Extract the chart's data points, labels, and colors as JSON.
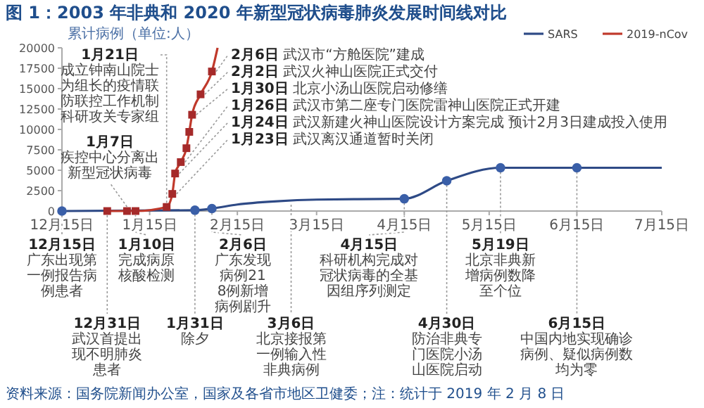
{
  "chart_data": {
    "type": "line",
    "title": "图 1：2003 年非典和 2020 年新型冠状病毒肺炎发展时间线对比",
    "ylabel": "累计病例（单位:人）",
    "xlim": [
      "2002-12-15",
      "2003-07-15"
    ],
    "xticks": [
      {
        "value": "2002-12-15",
        "label": "12月15日"
      },
      {
        "value": "2003-01-15",
        "label": "1月15日"
      },
      {
        "value": "2003-02-15",
        "label": "2月15日"
      },
      {
        "value": "2003-03-15",
        "label": "3月15日"
      },
      {
        "value": "2003-04-15",
        "label": "4月15日"
      },
      {
        "value": "2003-05-15",
        "label": "5月15日"
      },
      {
        "value": "2003-06-15",
        "label": "6月15日"
      },
      {
        "value": "2003-07-15",
        "label": "7月15日"
      }
    ],
    "ylim": [
      0,
      20000
    ],
    "yticks": [
      0,
      2500,
      5000,
      7500,
      10000,
      12500,
      15000,
      17500,
      20000
    ],
    "legend": "top right",
    "series": [
      {
        "name": "SARS",
        "color": "#2e4a86",
        "marker": "none",
        "x": [
          "2002-12-15",
          "2003-01-31",
          "2003-02-06",
          "2003-02-15",
          "2003-03-01",
          "2003-03-15",
          "2003-04-15",
          "2003-04-30",
          "2003-05-19",
          "2003-06-15",
          "2003-07-15"
        ],
        "values": [
          0,
          100,
          300,
          800,
          1200,
          1400,
          1500,
          3700,
          5300,
          5300,
          5300
        ]
      },
      {
        "name": "2019-nCov",
        "color": "#c0392b",
        "marker": "none",
        "x": [
          "2002-12-31",
          "2003-01-07",
          "2003-01-10",
          "2003-01-21",
          "2003-01-23",
          "2003-01-24",
          "2003-01-26",
          "2003-01-28",
          "2003-01-29",
          "2003-01-30",
          "2003-02-02",
          "2003-02-06",
          "2003-02-08"
        ],
        "values": [
          0,
          0,
          0,
          500,
          2100,
          4600,
          6000,
          7700,
          9700,
          11800,
          14300,
          17100,
          20000
        ]
      },
      {
        "type": "scatter",
        "color": "#3a5fa8",
        "marker": "circle",
        "x": [
          "2002-12-15",
          "2003-01-31",
          "2003-02-06",
          "2003-04-15",
          "2003-04-30",
          "2003-05-19",
          "2003-06-15"
        ],
        "values": [
          0,
          100,
          300,
          1500,
          3700,
          5300,
          5300
        ]
      },
      {
        "type": "scatter",
        "color": "#a52a2a",
        "marker": "square",
        "x": [
          "2002-12-31",
          "2003-01-07",
          "2003-01-10",
          "2003-01-21",
          "2003-01-23",
          "2003-01-24",
          "2003-01-26",
          "2003-01-28",
          "2003-01-29",
          "2003-01-30",
          "2003-02-02",
          "2003-02-06"
        ],
        "values": [
          0,
          0,
          0,
          500,
          2100,
          4600,
          6000,
          7700,
          9700,
          11800,
          14300,
          17100
        ]
      }
    ],
    "annotations": [
      {
        "text": "2月6日 武汉市“方舱医院”建成",
        "x": "2003-02-06",
        "y": 17100
      },
      {
        "text": "2月2日 武汉火神山医院正式交付",
        "x": "2003-02-02",
        "y": 14300
      },
      {
        "text": "1月30日 北京小汤山医院启动修缮",
        "x": "2003-01-30",
        "y": 11800
      },
      {
        "text": "1月26日 武汉市第二座专门医院雷神山医院正式开建",
        "x": "2003-01-26",
        "y": 6000
      },
      {
        "text": "1月24日 武汉新建火神山医院设计方案完成 预计2月3日建成投入使用",
        "x": "2003-01-24",
        "y": 4600
      },
      {
        "text": "1月23日 武汉离汉通道暂时关闭",
        "x": "2003-01-23",
        "y": 2100
      },
      {
        "text": "1月21日成立钟南山院士为组长的疫情联防联控工作机制科研攻关专家组",
        "x": "2003-01-21",
        "y": 500
      },
      {
        "text": "1月7日疾控中心分离出新型冠状病毒",
        "x": "2003-01-07",
        "y": 0
      },
      {
        "text": "12月15日广东出现第一例报告病例患者",
        "x": "2002-12-15",
        "y": 0
      },
      {
        "text": "12月31日武汉首提出现不明肺炎患者",
        "x": "2002-12-31",
        "y": 0
      },
      {
        "text": "1月10日完成病原核酸检测",
        "x": "2003-01-10",
        "y": 0
      },
      {
        "text": "1月31日除夕",
        "x": "2003-01-31",
        "y": 100
      },
      {
        "text": "2月6日广东发现病例218例新增病例剧升",
        "x": "2003-02-06",
        "y": 300
      },
      {
        "text": "3月6日北京接报第一例输入性非典病例",
        "x": "2003-03-06",
        "y": 1300
      },
      {
        "text": "4月15日科研机构完成对冠状病毒的全基因组序列测定",
        "x": "2003-04-15",
        "y": 1500
      },
      {
        "text": "4月30日防治非典专门医院小汤山医院启动",
        "x": "2003-04-30",
        "y": 3700
      },
      {
        "text": "5月19日北京非典新增病例数降至个位",
        "x": "2003-05-19",
        "y": 5300
      },
      {
        "text": "6月15日中国内地实现确诊病例、疑似病例数均为零",
        "x": "2003-06-15",
        "y": 5300
      },
      "资料来源：国务院新闻办公室，国家及各省市地区卫健委；注：统计于 2019 年 2 月 8 日"
    ]
  }
}
